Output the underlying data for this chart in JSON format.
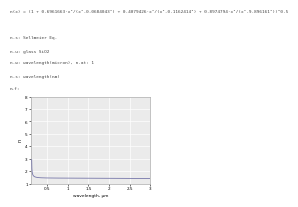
{
  "title": "n(x) =",
  "formula_line1": "n(x) = (1 + 0.6961663·x²/(x²-0.0684043²) + 0.4079426·x²/(x²-0.1162414²) + 0.8974794·x²/(x²-9.896161²))^0.5",
  "line1": "n.s: Sellmeier Eq.",
  "line2": "n.u: glass SiO2",
  "line3": "n.w: wavelength(micron), n.at: 1",
  "line4": "n.s: wavelength(nm)",
  "line5": "n.f:",
  "xlim": [
    0.1,
    3.0
  ],
  "ylim": [
    1.0,
    8.0
  ],
  "xtick_labels": [
    "0.5",
    "1",
    "1.5",
    "2",
    "2.5",
    "3"
  ],
  "xtick_vals": [
    0.5,
    1.0,
    1.5,
    2.0,
    2.5,
    3.0
  ],
  "ytick_labels": [
    "1",
    "2",
    "3",
    "4",
    "5",
    "6",
    "7",
    "8"
  ],
  "ytick_vals": [
    1.0,
    2.0,
    3.0,
    4.0,
    5.0,
    6.0,
    7.0,
    8.0
  ],
  "line_color": "#7777aa",
  "plot_bg": "#ebebeb",
  "grid_color": "#ffffff",
  "fig_bg": "#ffffff",
  "text_color": "#444444",
  "xlabel": "wavelength, μm",
  "ylabel": "n"
}
